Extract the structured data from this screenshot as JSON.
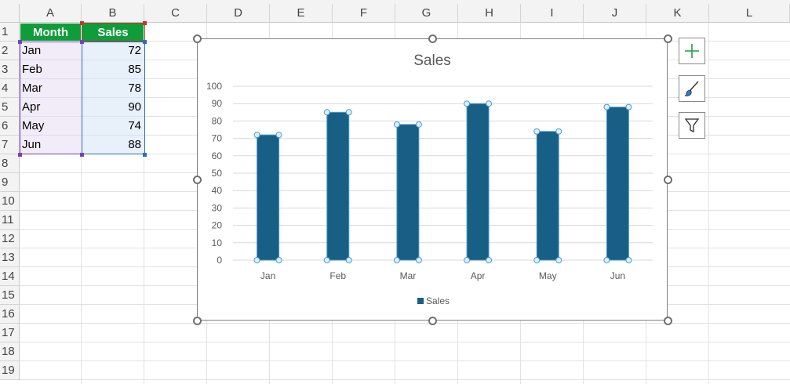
{
  "columns": [
    "A",
    "B",
    "C",
    "D",
    "E",
    "F",
    "G",
    "H",
    "I",
    "J",
    "K",
    "L"
  ],
  "rows": [
    "1",
    "2",
    "3",
    "4",
    "5",
    "6",
    "7",
    "8",
    "9",
    "10",
    "11",
    "12",
    "13",
    "14",
    "15",
    "16",
    "17",
    "18",
    "19"
  ],
  "table": {
    "headers": [
      "Month",
      "Sales"
    ],
    "data": [
      {
        "month": "Jan",
        "sales": "72"
      },
      {
        "month": "Feb",
        "sales": "85"
      },
      {
        "month": "Mar",
        "sales": "78"
      },
      {
        "month": "Apr",
        "sales": "90"
      },
      {
        "month": "May",
        "sales": "74"
      },
      {
        "month": "Jun",
        "sales": "88"
      }
    ]
  },
  "colors": {
    "header_green": "#0f9d3a",
    "bar": "#175f84",
    "month_range": "#7a3fb8",
    "sales_range": "#2e6bbf"
  },
  "side_buttons": [
    {
      "name": "chart-elements-button",
      "icon": "plus-icon"
    },
    {
      "name": "chart-styles-button",
      "icon": "paintbrush-icon"
    },
    {
      "name": "chart-filters-button",
      "icon": "funnel-icon"
    }
  ],
  "chart_data": {
    "type": "bar",
    "title": "Sales",
    "categories": [
      "Jan",
      "Feb",
      "Mar",
      "Apr",
      "May",
      "Jun"
    ],
    "series": [
      {
        "name": "Sales",
        "values": [
          72,
          85,
          78,
          90,
          74,
          88
        ],
        "color": "#175f84"
      }
    ],
    "ylim": [
      0,
      100
    ],
    "yticks": [
      0,
      10,
      20,
      30,
      40,
      50,
      60,
      70,
      80,
      90,
      100
    ],
    "grid": true,
    "legend": "bottom",
    "selected": true
  }
}
